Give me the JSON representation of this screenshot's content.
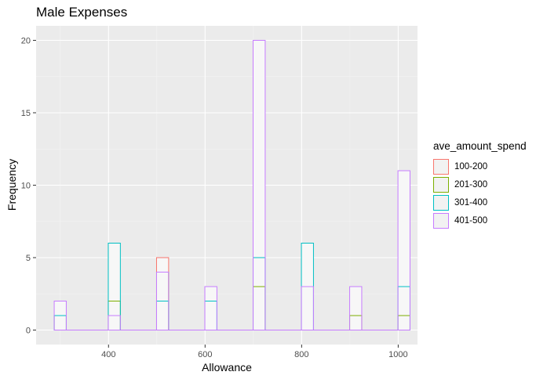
{
  "chart_data": {
    "type": "bar",
    "title": "Male Expenses",
    "xlabel": "Allowance",
    "ylabel": "Frequency",
    "xlim": [
      250,
      1040
    ],
    "ylim": [
      -1,
      21
    ],
    "x_ticks": [
      400,
      600,
      800,
      1000
    ],
    "y_ticks": [
      0,
      5,
      10,
      15,
      20
    ],
    "grid": true,
    "legend_title": "ave_amount_spend",
    "legend_position": "right",
    "bin_width": 25,
    "bin_centers": [
      300,
      400,
      425,
      500,
      525,
      600,
      625,
      700,
      725,
      800,
      825,
      900,
      925,
      1000,
      1025
    ],
    "series": [
      {
        "name": "100-200",
        "color": "#F8766D",
        "values": [
          0,
          0,
          0,
          0,
          0,
          0,
          0,
          0,
          0,
          0,
          0,
          0,
          0,
          0,
          0
        ]
      },
      {
        "name": "201-300",
        "color": "#7CAE00",
        "values": [
          1,
          0,
          0,
          0,
          0,
          0,
          0,
          0,
          0,
          0,
          0,
          0,
          0,
          0,
          0
        ]
      },
      {
        "name": "301-400",
        "color": "#00BFC4",
        "values": [
          1,
          0,
          0,
          0,
          0,
          0,
          0,
          0,
          0,
          0,
          0,
          0,
          0,
          0,
          0
        ]
      },
      {
        "name": "401-500",
        "color": "#C77CFF",
        "values": [
          2,
          0,
          0,
          0,
          0,
          0,
          0,
          0,
          0,
          0,
          0,
          0,
          0,
          0,
          0
        ]
      }
    ],
    "stacked_bins": [
      {
        "x": 300,
        "cum": [
          0,
          1,
          1,
          2
        ]
      },
      {
        "x": 412,
        "cum": [
          0,
          2,
          6,
          1
        ]
      },
      {
        "x": 512,
        "cum": [
          5,
          4,
          2,
          4
        ]
      },
      {
        "x": 612,
        "cum": [
          0,
          0,
          2,
          3
        ]
      },
      {
        "x": 712,
        "cum": [
          0,
          3,
          5,
          20
        ]
      },
      {
        "x": 812,
        "cum": [
          0,
          0,
          6,
          3
        ]
      },
      {
        "x": 912,
        "cum": [
          0,
          1,
          0,
          3
        ]
      },
      {
        "x": 1012,
        "cum": [
          0,
          1,
          3,
          11
        ]
      }
    ]
  }
}
